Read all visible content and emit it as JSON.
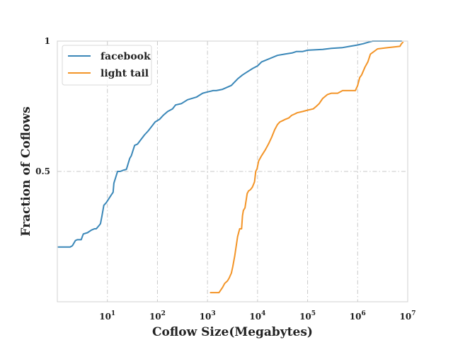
{
  "chart_data": {
    "type": "line",
    "xlabel": "Coflow Size(Megabytes)",
    "ylabel": "Fraction of Coflows",
    "xscale": "log",
    "xlim": [
      1,
      10000000
    ],
    "ylim": [
      0.0,
      1.0
    ],
    "xtick_values": [
      10,
      100,
      1000,
      10000,
      100000,
      1000000,
      10000000
    ],
    "xtick_labels": [
      {
        "base": "10",
        "exp": "1"
      },
      {
        "base": "10",
        "exp": "2"
      },
      {
        "base": "10",
        "exp": "3"
      },
      {
        "base": "10",
        "exp": "4"
      },
      {
        "base": "10",
        "exp": "5"
      },
      {
        "base": "10",
        "exp": "6"
      },
      {
        "base": "10",
        "exp": "7"
      }
    ],
    "ytick_values": [
      0.5,
      1.0
    ],
    "ytick_labels": [
      "0.5",
      "1"
    ],
    "grid": true,
    "legend_position": "top-left",
    "series": [
      {
        "name": "facebook",
        "color": "#3a87b8",
        "x": [
          1.05,
          1.8,
          2.0,
          2.3,
          2.5,
          3.0,
          3.3,
          4.0,
          4.8,
          5.5,
          6.0,
          7.0,
          7.3,
          7.8,
          8.5,
          9.5,
          12,
          13,
          13.5,
          16,
          18,
          21,
          24,
          28,
          30,
          35,
          40,
          48,
          55,
          65,
          75,
          90,
          110,
          130,
          160,
          200,
          230,
          300,
          400,
          600,
          800,
          1000,
          1300,
          1500,
          2000,
          3000,
          4000,
          5000,
          6000,
          8000,
          10000,
          12000,
          16000,
          25000,
          35000,
          50000,
          60000,
          80000,
          100000,
          200000,
          300000,
          500000,
          700000,
          1000000,
          1300000,
          1600000,
          2000000,
          5000000,
          7500000
        ],
        "y": [
          0.21,
          0.21,
          0.215,
          0.235,
          0.238,
          0.238,
          0.26,
          0.265,
          0.275,
          0.28,
          0.28,
          0.295,
          0.3,
          0.33,
          0.37,
          0.38,
          0.41,
          0.42,
          0.455,
          0.5,
          0.5,
          0.505,
          0.508,
          0.55,
          0.56,
          0.6,
          0.605,
          0.625,
          0.64,
          0.655,
          0.67,
          0.69,
          0.7,
          0.715,
          0.73,
          0.74,
          0.755,
          0.76,
          0.775,
          0.785,
          0.8,
          0.805,
          0.81,
          0.81,
          0.815,
          0.83,
          0.855,
          0.87,
          0.88,
          0.895,
          0.905,
          0.92,
          0.93,
          0.945,
          0.95,
          0.955,
          0.96,
          0.96,
          0.965,
          0.968,
          0.972,
          0.975,
          0.98,
          0.985,
          0.99,
          0.995,
          1.0,
          1.0,
          1.0
        ]
      },
      {
        "name": "light tail",
        "color": "#f39427",
        "x": [
          1150,
          1200,
          1700,
          2000,
          2200,
          2500,
          2700,
          3000,
          3200,
          3500,
          4000,
          4400,
          4800,
          5000,
          5200,
          5600,
          6200,
          6600,
          7200,
          7900,
          8700,
          9200,
          9800,
          10500,
          12000,
          14000,
          16000,
          17000,
          19000,
          22000,
          25000,
          28000,
          32000,
          36000,
          42000,
          48000,
          55000,
          62000,
          80000,
          100000,
          130000,
          150000,
          170000,
          200000,
          250000,
          300000,
          400000,
          500000,
          600000,
          700000,
          900000,
          1000000,
          1100000,
          1200000,
          1400000,
          1600000,
          1800000,
          2500000,
          4000000,
          7000000,
          7500000,
          8000000
        ],
        "y": [
          0.035,
          0.035,
          0.035,
          0.055,
          0.07,
          0.08,
          0.09,
          0.11,
          0.135,
          0.175,
          0.25,
          0.28,
          0.28,
          0.33,
          0.35,
          0.36,
          0.415,
          0.425,
          0.43,
          0.44,
          0.46,
          0.5,
          0.51,
          0.54,
          0.56,
          0.58,
          0.6,
          0.61,
          0.63,
          0.66,
          0.68,
          0.69,
          0.695,
          0.7,
          0.705,
          0.715,
          0.72,
          0.725,
          0.73,
          0.735,
          0.74,
          0.75,
          0.76,
          0.78,
          0.795,
          0.8,
          0.8,
          0.81,
          0.81,
          0.81,
          0.81,
          0.83,
          0.86,
          0.87,
          0.9,
          0.92,
          0.95,
          0.97,
          0.975,
          0.98,
          0.99,
          0.995
        ]
      }
    ]
  }
}
